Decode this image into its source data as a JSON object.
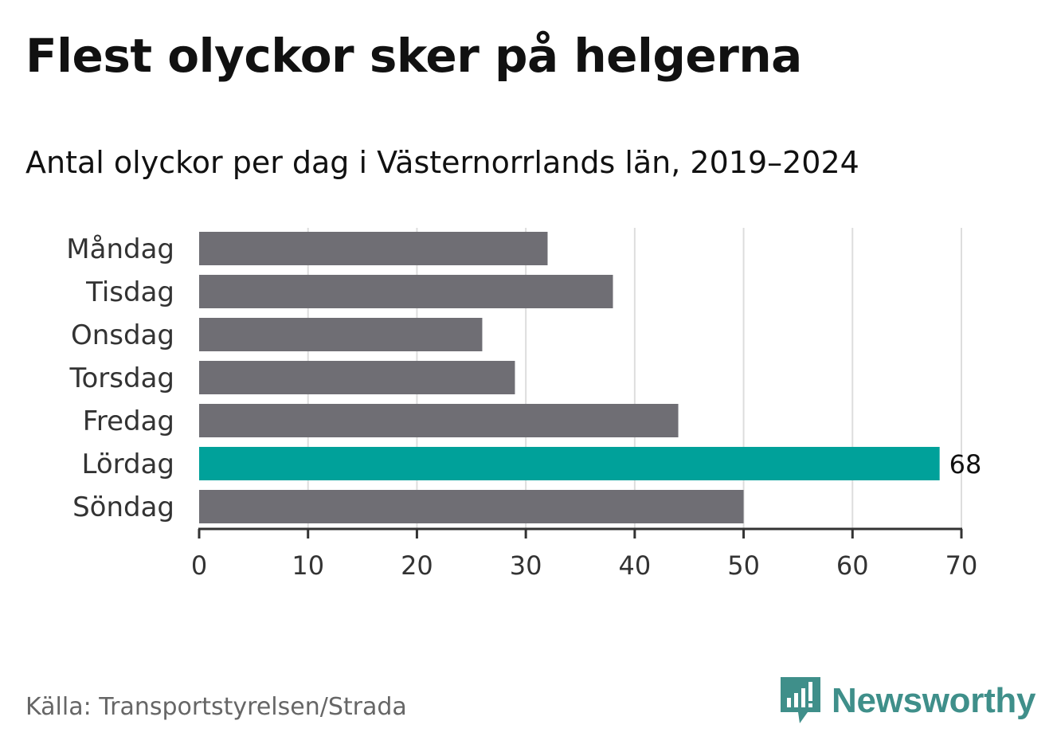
{
  "title": "Flest olyckor sker på helgerna",
  "subtitle": "Antal olyckor per dag i Västernorrlands län, 2019–2024",
  "source": "Källa: Transportstyrelsen/Strada",
  "brand": {
    "name": "Newsworthy",
    "color": "#3f8f8a",
    "icon": "newsworthy-logo-icon"
  },
  "colors": {
    "bar": "#6f6e74",
    "highlight": "#00a19a",
    "grid": "#dddddd",
    "axis": "#333333"
  },
  "chart_data": {
    "type": "bar",
    "orientation": "horizontal",
    "categories": [
      "Måndag",
      "Tisdag",
      "Onsdag",
      "Torsdag",
      "Fredag",
      "Lördag",
      "Söndag"
    ],
    "values": [
      32,
      38,
      26,
      29,
      44,
      68,
      50
    ],
    "highlight": "Lördag",
    "data_labels": [
      {
        "category": "Lördag",
        "text": "68"
      }
    ],
    "xlim": [
      0,
      70
    ],
    "xticks": [
      0,
      10,
      20,
      30,
      40,
      50,
      60,
      70
    ],
    "grid": true,
    "xlabel": "",
    "ylabel": ""
  }
}
